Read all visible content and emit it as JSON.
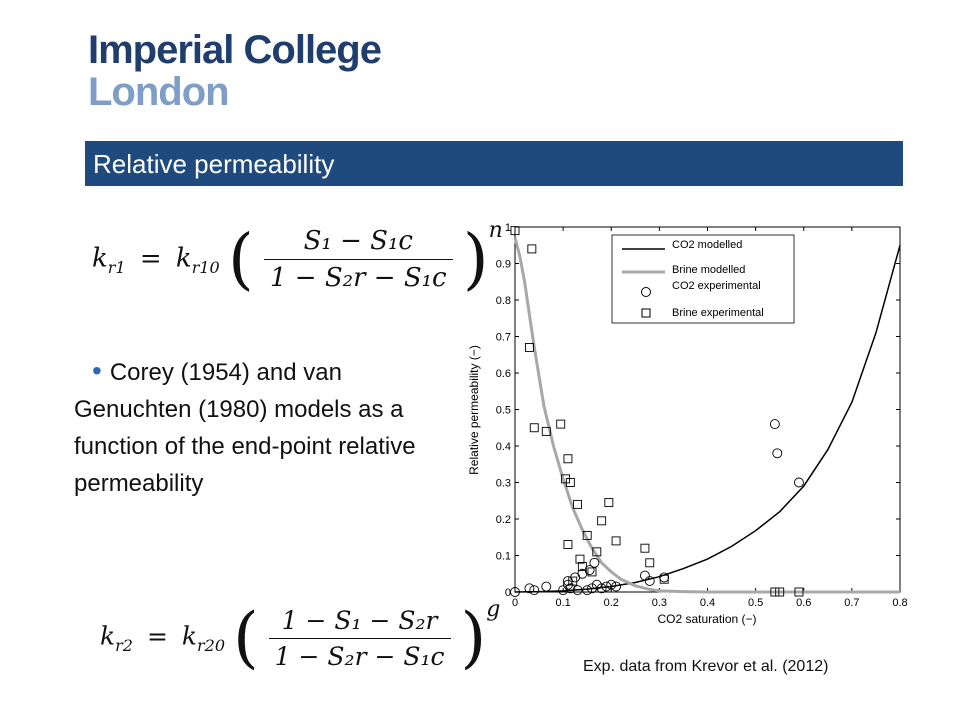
{
  "logo": {
    "line1": "Imperial College",
    "line2": "London"
  },
  "slide_title": "Relative permeability",
  "bullet_text": "Corey (1954) and van Genuchten (1980) models as a function of the end-point relative permeability",
  "caption": "Exp. data from Krevor et al. (2012)",
  "colors": {
    "title_bar": "#1f4a7e",
    "logo_dark": "#1f3e6e",
    "logo_light": "#7e9ec7",
    "bullet": "#2e66b5",
    "co2_model": "#000000",
    "brine_model": "#a8a8a8"
  },
  "equations": {
    "eq1": {
      "lhs": "k",
      "lhs_sub": "r1",
      "eq": "=",
      "rhs": "k",
      "rhs_sub": "r10",
      "num": "S₁ − S₁c",
      "den": "1 − S₂r − S₁c",
      "exponent": "n"
    },
    "eq2": {
      "lhs": "k",
      "lhs_sub": "r2",
      "eq": "=",
      "rhs": "k",
      "rhs_sub": "r20",
      "num": "1 − S₁ − S₂r",
      "den": "1 − S₂r − S₁c",
      "exponent": "g"
    }
  },
  "chart_data": {
    "type": "scatter",
    "xlabel": "CO2 saturation (−)",
    "ylabel": "Relative permeability (−)",
    "xlim": [
      0,
      0.8
    ],
    "ylim": [
      0,
      1
    ],
    "xticks": [
      "0",
      "0.1",
      "0.2",
      "0.3",
      "0.4",
      "0.5",
      "0.6",
      "0.7",
      "0.8"
    ],
    "yticks": [
      "0",
      "0.1",
      "0.2",
      "0.3",
      "0.4",
      "0.5",
      "0.6",
      "0.7",
      "0.8",
      "0.9",
      "1"
    ],
    "legend_position": "top-right",
    "grid": false,
    "series": [
      {
        "name": "CO2 modelled",
        "kind": "line",
        "color": "#000000",
        "x": [
          0,
          0.05,
          0.1,
          0.15,
          0.2,
          0.25,
          0.3,
          0.35,
          0.4,
          0.45,
          0.5,
          0.55,
          0.6,
          0.65,
          0.7,
          0.75,
          0.8
        ],
        "y": [
          0,
          0.001,
          0.003,
          0.008,
          0.015,
          0.026,
          0.042,
          0.064,
          0.09,
          0.125,
          0.168,
          0.22,
          0.29,
          0.39,
          0.52,
          0.71,
          0.95
        ]
      },
      {
        "name": "Brine modelled",
        "kind": "line",
        "color": "#a8a8a8",
        "x": [
          0,
          0.01,
          0.02,
          0.03,
          0.04,
          0.05,
          0.06,
          0.08,
          0.1,
          0.12,
          0.14,
          0.16,
          0.18,
          0.2,
          0.22,
          0.25,
          0.28,
          0.3,
          0.35,
          0.4,
          0.5,
          0.6,
          0.8
        ],
        "y": [
          0.97,
          0.92,
          0.85,
          0.76,
          0.67,
          0.59,
          0.51,
          0.4,
          0.31,
          0.23,
          0.17,
          0.12,
          0.08,
          0.055,
          0.035,
          0.017,
          0.007,
          0.003,
          0.001,
          0,
          0,
          0,
          0
        ]
      },
      {
        "name": "CO2 experimental",
        "kind": "marker",
        "marker": "circle",
        "x": [
          0,
          0.03,
          0.04,
          0.065,
          0.1,
          0.11,
          0.11,
          0.115,
          0.125,
          0.13,
          0.14,
          0.15,
          0.155,
          0.16,
          0.165,
          0.17,
          0.18,
          0.19,
          0.2,
          0.21,
          0.27,
          0.28,
          0.31,
          0.54,
          0.545,
          0.59
        ],
        "y": [
          0,
          0.01,
          0.005,
          0.015,
          0.005,
          0.02,
          0.03,
          0.01,
          0.04,
          0.005,
          0.05,
          0.005,
          0.06,
          0.01,
          0.08,
          0.02,
          0.01,
          0.015,
          0.02,
          0.015,
          0.045,
          0.03,
          0.04,
          0.46,
          0.38,
          0.3
        ]
      },
      {
        "name": "Brine experimental",
        "kind": "marker",
        "marker": "square",
        "x": [
          0,
          0.03,
          0.035,
          0.04,
          0.065,
          0.095,
          0.105,
          0.11,
          0.115,
          0.13,
          0.135,
          0.14,
          0.15,
          0.16,
          0.17,
          0.18,
          0.195,
          0.21,
          0.27,
          0.28,
          0.31,
          0.54,
          0.55,
          0.59,
          0.11,
          0.12
        ],
        "y": [
          0.99,
          0.67,
          0.94,
          0.45,
          0.44,
          0.46,
          0.31,
          0.365,
          0.3,
          0.24,
          0.09,
          0.07,
          0.155,
          0.055,
          0.11,
          0.195,
          0.245,
          0.14,
          0.12,
          0.08,
          0.035,
          0,
          0,
          0,
          0.13,
          0.03
        ]
      }
    ]
  }
}
